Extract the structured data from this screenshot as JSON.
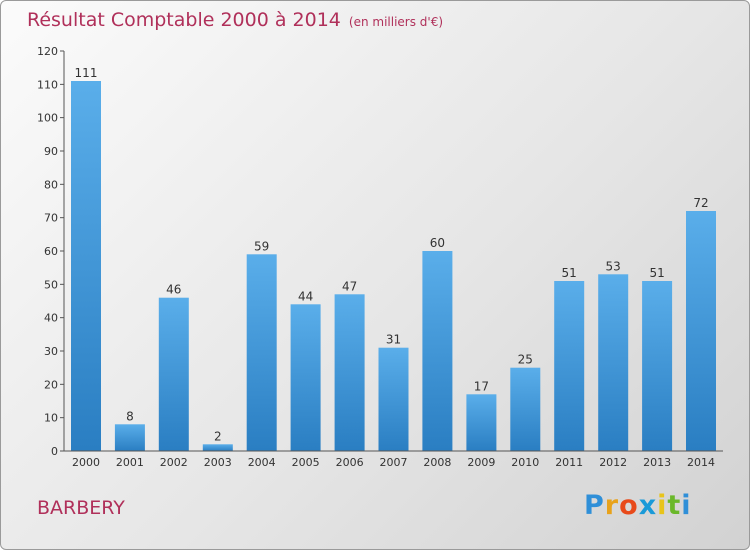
{
  "chart_data": {
    "type": "bar",
    "title": "Résultat Comptable 2000 à 2014",
    "unit_note": "(en milliers d'€)",
    "categories": [
      "2000",
      "2001",
      "2002",
      "2003",
      "2004",
      "2005",
      "2006",
      "2007",
      "2008",
      "2009",
      "2010",
      "2011",
      "2012",
      "2013",
      "2014"
    ],
    "values": [
      111,
      8,
      46,
      2,
      59,
      44,
      47,
      31,
      60,
      17,
      25,
      51,
      53,
      51,
      72
    ],
    "ylim": [
      0,
      120
    ],
    "yticks": [
      0,
      10,
      20,
      30,
      40,
      50,
      60,
      70,
      80,
      90,
      100,
      110,
      120
    ],
    "grid": false,
    "bar_color_top": "#5aaeea",
    "bar_color_bottom": "#2a7ec2"
  },
  "commune": "BARBERY",
  "logo": {
    "letters": [
      "P",
      "r",
      "o",
      "x",
      "i",
      "t",
      "i"
    ],
    "colors": [
      "#2f8fd8",
      "#e8a21a",
      "#e84a1a",
      "#1a9ad8",
      "#e8c41a",
      "#6ab82a",
      "#2f8fd8"
    ]
  }
}
